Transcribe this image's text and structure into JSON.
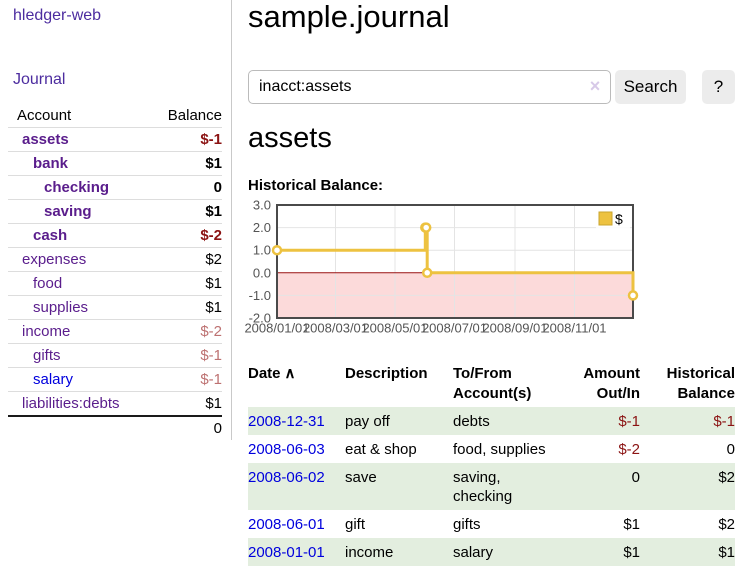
{
  "app": {
    "brand": "hledger-web"
  },
  "sidebar": {
    "nav_journal": "Journal",
    "accounts": {
      "header": {
        "account": "Account",
        "balance": "Balance"
      },
      "rows": [
        {
          "name": "assets",
          "balance": "$-1",
          "depth": 0,
          "matched": true
        },
        {
          "name": "bank",
          "balance": "$1",
          "depth": 1,
          "matched": true
        },
        {
          "name": "checking",
          "balance": "0",
          "depth": 2,
          "matched": true
        },
        {
          "name": "saving",
          "balance": "$1",
          "depth": 2,
          "matched": true
        },
        {
          "name": "cash",
          "balance": "$-2",
          "depth": 1,
          "matched": true
        },
        {
          "name": "expenses",
          "balance": "$2",
          "depth": 0,
          "matched": false
        },
        {
          "name": "food",
          "balance": "$1",
          "depth": 1,
          "matched": false
        },
        {
          "name": "supplies",
          "balance": "$1",
          "depth": 1,
          "matched": false
        },
        {
          "name": "income",
          "balance": "$-2",
          "depth": 0,
          "matched": false
        },
        {
          "name": "gifts",
          "balance": "$-1",
          "depth": 1,
          "matched": false
        },
        {
          "name": "salary",
          "balance": "$-1",
          "depth": 1,
          "matched": false
        },
        {
          "name": "liabilities:debts",
          "balance": "$1",
          "depth": 0,
          "matched": false
        }
      ],
      "total": "0"
    }
  },
  "main": {
    "title": "sample.journal",
    "search": {
      "value": "inacct:assets",
      "clear_label": "×",
      "search_button": "Search",
      "help_button": "?"
    },
    "heading": "assets",
    "chart_title": "Historical Balance:"
  },
  "transactions": {
    "sort_icon": "∧",
    "headers": {
      "date": "Date",
      "description": "Description",
      "tofrom": "To/From\nAccount(s)",
      "amount": "Amount\nOut/In",
      "balance": "Historical\nBalance"
    },
    "rows": [
      {
        "date": "2008-12-31",
        "description": "pay off",
        "accounts": "debts",
        "amount": "$-1",
        "balance": "$-1"
      },
      {
        "date": "2008-06-03",
        "description": "eat & shop",
        "accounts": "food, supplies",
        "amount": "$-2",
        "balance": "0"
      },
      {
        "date": "2008-06-02",
        "description": "save",
        "accounts": "saving,\nchecking",
        "amount": "0",
        "balance": "$2"
      },
      {
        "date": "2008-06-01",
        "description": "gift",
        "accounts": "gifts",
        "amount": "$1",
        "balance": "$2"
      },
      {
        "date": "2008-01-01",
        "description": "income",
        "accounts": "salary",
        "amount": "$1",
        "balance": "$1"
      }
    ]
  },
  "chart_data": {
    "type": "line",
    "style": "step-after",
    "title": "Historical Balance:",
    "x": [
      "2008-01-01",
      "2008-06-01",
      "2008-06-02",
      "2008-06-03",
      "2008-12-31"
    ],
    "values": [
      1,
      2,
      2,
      0,
      -1
    ],
    "xlim": [
      "2008-01-01",
      "2008-12-31"
    ],
    "ylim": [
      -2,
      3
    ],
    "grid": true,
    "legend_position": "top-right",
    "legend": [
      {
        "label": "$",
        "color": "#edc240"
      }
    ],
    "yticks": [
      {
        "v": 3,
        "label": "3.0"
      },
      {
        "v": 2,
        "label": "2.0"
      },
      {
        "v": 1,
        "label": "1.0"
      },
      {
        "v": 0,
        "label": "0.0"
      },
      {
        "v": -1,
        "label": "-1.0"
      },
      {
        "v": -2,
        "label": "-2.0"
      }
    ],
    "xticks": [
      {
        "d": "2008-01-01",
        "label": "2008/01/01"
      },
      {
        "d": "2008-03-01",
        "label": "2008/03/01"
      },
      {
        "d": "2008-05-01",
        "label": "2008/05/01"
      },
      {
        "d": "2008-07-01",
        "label": "2008/07/01"
      },
      {
        "d": "2008-09-01",
        "label": "2008/09/01"
      },
      {
        "d": "2008-11-01",
        "label": "2008/11/01"
      }
    ],
    "colors": {
      "series": "#edc240",
      "series_edge": "#c9a42e",
      "marker_fill": "#ffffff",
      "negative_region": "#fcdada",
      "zero_line": "#991111",
      "frame": "#4a4a4a",
      "grid": "#e4e4e4",
      "tick_text": "#545454"
    }
  },
  "colors": {
    "nav_link": "#4c2c9f",
    "account_link": "#5a1d8c",
    "link_blue": "#0000dd",
    "negative_strong": "#8b1313",
    "negative_soft": "#bd7171",
    "row_stripe_green": "#e3eedf",
    "button_bg": "#ececec"
  }
}
